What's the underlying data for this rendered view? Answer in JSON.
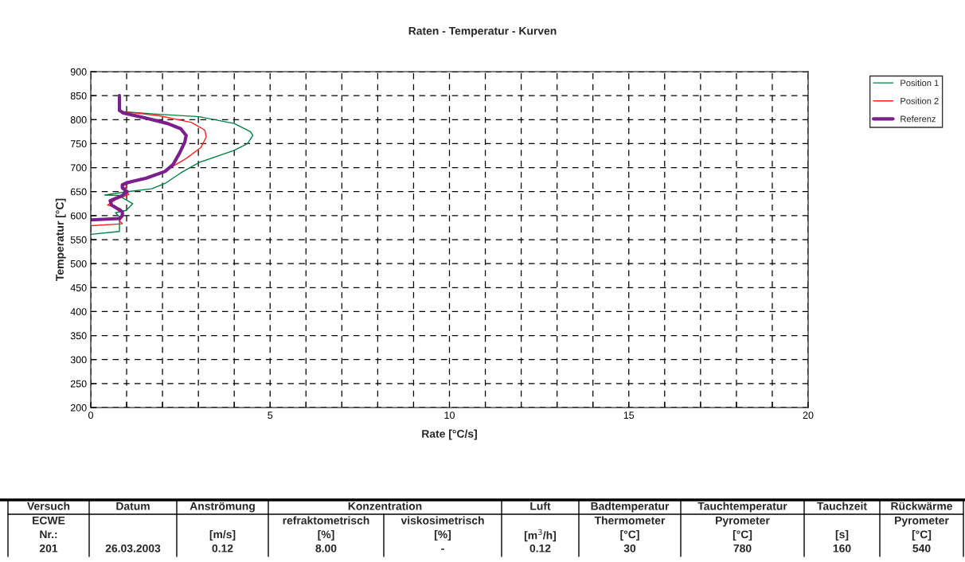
{
  "chart_data": {
    "type": "line",
    "title": "Raten - Temperatur - Kurven",
    "xlabel": "Rate [°C/s]",
    "ylabel": "Temperatur [°C]",
    "xlim": [
      0,
      20
    ],
    "ylim": [
      200,
      900
    ],
    "xticks": [
      0,
      {
        "value": 1,
        "label": null
      },
      {
        "value": 2,
        "label": null
      },
      {
        "value": 3,
        "label": null
      },
      {
        "value": 4,
        "label": null
      },
      5,
      {
        "value": 6,
        "label": null
      },
      {
        "value": 7,
        "label": null
      },
      {
        "value": 8,
        "label": null
      },
      {
        "value": 9,
        "label": null
      },
      10,
      {
        "value": 11,
        "label": null
      },
      {
        "value": 12,
        "label": null
      },
      {
        "value": 13,
        "label": null
      },
      {
        "value": 14,
        "label": null
      },
      15,
      {
        "value": 16,
        "label": null
      },
      {
        "value": 17,
        "label": null
      },
      {
        "value": 18,
        "label": null
      },
      {
        "value": 19,
        "label": null
      },
      20
    ],
    "yticks": [
      200,
      250,
      300,
      350,
      400,
      450,
      500,
      550,
      600,
      650,
      700,
      750,
      800,
      850,
      900
    ],
    "grid": true,
    "legend": "top right",
    "line_style": "solid",
    "marker": "none",
    "series": [
      {
        "name": "Position 1",
        "color": "#008040",
        "x": [
          0.8,
          0.8,
          1.92,
          3.03,
          4.0,
          4.45,
          4.52,
          4.37,
          4.0,
          3.03,
          2.51,
          2.07,
          1.7,
          1.03,
          0.39,
          0.8,
          0.91,
          1.17,
          0.99,
          0.69,
          0.8,
          0.8,
          0.8,
          0.0
        ],
        "values": [
          850,
          817,
          811,
          806,
          792,
          775,
          767,
          750,
          736,
          711,
          689,
          667,
          656,
          650,
          643,
          642,
          636,
          625,
          611,
          606,
          597,
          589,
          567,
          561
        ]
      },
      {
        "name": "Position 2",
        "color": "#ff2020",
        "x": [
          0.99,
          1.92,
          2.81,
          3.18,
          3.22,
          3.07,
          2.66,
          2.22,
          1.7,
          1.03,
          0.95,
          1.06,
          0.69,
          0.47,
          0.84,
          0.91,
          0.8,
          0.88,
          0.02
        ],
        "values": [
          816,
          808,
          794,
          778,
          764,
          742,
          719,
          700,
          681,
          667,
          656,
          644,
          633,
          622,
          614,
          600,
          589,
          583,
          579
        ]
      },
      {
        "name": "Referenz",
        "color": "#7a1f8c",
        "x": [
          0.8,
          0.8,
          0.91,
          1.55,
          2.14,
          2.51,
          2.66,
          2.62,
          2.48,
          2.29,
          2.07,
          1.55,
          1.03,
          0.88,
          0.88,
          1.01,
          0.88,
          0.54,
          0.58,
          0.88,
          0.88,
          0.8,
          0.0
        ],
        "values": [
          850,
          819,
          814,
          803,
          792,
          781,
          767,
          753,
          731,
          706,
          692,
          678,
          669,
          664,
          658,
          650,
          642,
          631,
          622,
          608,
          600,
          594,
          591
        ]
      }
    ],
    "annotations": [
      "Versuch",
      "Datum",
      "Anströmung",
      "Konzentration",
      "Luft",
      "Badtemperatur",
      "Tauchtemperatur",
      "Tauchzeit",
      "Rückwärme",
      "ECWE",
      "refraktometrisch",
      "viskosimetrisch",
      "Thermometer",
      "Pyrometer",
      "Pyrometer",
      "Nr.:",
      "[m/s]",
      "[%]",
      "[%]",
      "[m$^{3}$/h]",
      "[°C]",
      "[°C]",
      "[s]",
      "[°C]",
      "201",
      "26.03.2003",
      "0.12",
      "8.00",
      "-",
      "0.12",
      "30",
      "780",
      "160",
      "540"
    ]
  }
}
